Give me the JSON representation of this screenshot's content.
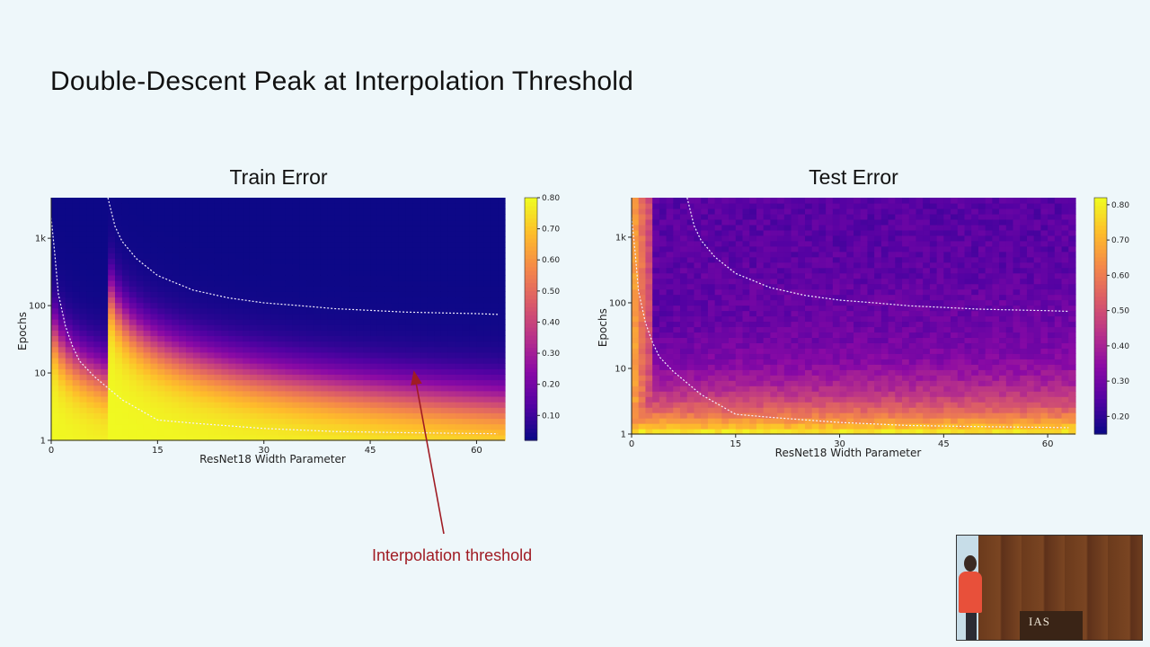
{
  "slide": {
    "title": "Double-Descent Peak at Interpolation Threshold",
    "annotation": "Interpolation threshold",
    "annotation_color": "#a01c24"
  },
  "inset": {
    "podium_sign": "IAS"
  },
  "chart_data": [
    {
      "type": "heatmap",
      "title": "Train Error",
      "xlabel": "ResNet18 Width Parameter",
      "ylabel": "Epochs",
      "x_ticks": [
        "0",
        "15",
        "30",
        "45",
        "60"
      ],
      "x_tick_values": [
        0,
        15,
        30,
        45,
        60
      ],
      "xlim": [
        0,
        64
      ],
      "y_scale": "log",
      "y_ticks": [
        "1",
        "10",
        "100",
        "1k"
      ],
      "y_tick_values": [
        1,
        10,
        100,
        1000
      ],
      "ylim": [
        1,
        4000
      ],
      "colorbar": {
        "ticks": [
          "0.80",
          "0.70",
          "0.60",
          "0.50",
          "0.40",
          "0.30",
          "0.20",
          "0.10"
        ],
        "tick_values": [
          0.8,
          0.7,
          0.6,
          0.5,
          0.4,
          0.3,
          0.2,
          0.1
        ],
        "range": [
          0.02,
          0.8
        ],
        "colormap": "plasma"
      },
      "contours": [
        {
          "level": "upper",
          "points": [
            [
              8,
              4000
            ],
            [
              9,
              1500
            ],
            [
              10,
              900
            ],
            [
              12,
              500
            ],
            [
              15,
              280
            ],
            [
              20,
              170
            ],
            [
              25,
              130
            ],
            [
              30,
              110
            ],
            [
              35,
              100
            ],
            [
              40,
              90
            ],
            [
              45,
              85
            ],
            [
              50,
              80
            ],
            [
              55,
              78
            ],
            [
              60,
              76
            ],
            [
              63,
              74
            ]
          ]
        },
        {
          "level": "lower",
          "points": [
            [
              0,
              2000
            ],
            [
              0.5,
              600
            ],
            [
              1,
              150
            ],
            [
              2,
              50
            ],
            [
              3,
              25
            ],
            [
              4,
              15
            ],
            [
              6,
              9
            ],
            [
              8,
              6
            ],
            [
              10,
              4
            ],
            [
              15,
              2
            ],
            [
              20,
              1.8
            ],
            [
              30,
              1.5
            ],
            [
              40,
              1.35
            ],
            [
              50,
              1.3
            ],
            [
              63,
              1.25
            ]
          ]
        }
      ]
    },
    {
      "type": "heatmap",
      "title": "Test Error",
      "xlabel": "ResNet18 Width Parameter",
      "ylabel": "Epochs",
      "x_ticks": [
        "0",
        "15",
        "30",
        "45",
        "60"
      ],
      "x_tick_values": [
        0,
        15,
        30,
        45,
        60
      ],
      "xlim": [
        0,
        64
      ],
      "y_scale": "log",
      "y_ticks": [
        "1",
        "10",
        "100",
        "1k"
      ],
      "y_tick_values": [
        1,
        10,
        100,
        1000
      ],
      "ylim": [
        1,
        4000
      ],
      "colorbar": {
        "ticks": [
          "0.80",
          "0.70",
          "0.60",
          "0.50",
          "0.40",
          "0.30",
          "0.20"
        ],
        "tick_values": [
          0.8,
          0.7,
          0.6,
          0.5,
          0.4,
          0.3,
          0.2
        ],
        "range": [
          0.15,
          0.82
        ],
        "colormap": "plasma"
      },
      "contours": [
        {
          "level": "upper",
          "points": [
            [
              8,
              4000
            ],
            [
              9,
              1500
            ],
            [
              10,
              900
            ],
            [
              12,
              500
            ],
            [
              15,
              280
            ],
            [
              20,
              170
            ],
            [
              25,
              130
            ],
            [
              30,
              110
            ],
            [
              35,
              100
            ],
            [
              40,
              90
            ],
            [
              45,
              85
            ],
            [
              50,
              80
            ],
            [
              55,
              78
            ],
            [
              60,
              76
            ],
            [
              63,
              74
            ]
          ]
        },
        {
          "level": "lower",
          "points": [
            [
              0,
              2000
            ],
            [
              0.5,
              600
            ],
            [
              1,
              150
            ],
            [
              2,
              50
            ],
            [
              3,
              25
            ],
            [
              4,
              15
            ],
            [
              6,
              9
            ],
            [
              8,
              6
            ],
            [
              10,
              4
            ],
            [
              15,
              2
            ],
            [
              20,
              1.8
            ],
            [
              30,
              1.5
            ],
            [
              40,
              1.35
            ],
            [
              50,
              1.3
            ],
            [
              63,
              1.25
            ]
          ]
        }
      ]
    }
  ]
}
